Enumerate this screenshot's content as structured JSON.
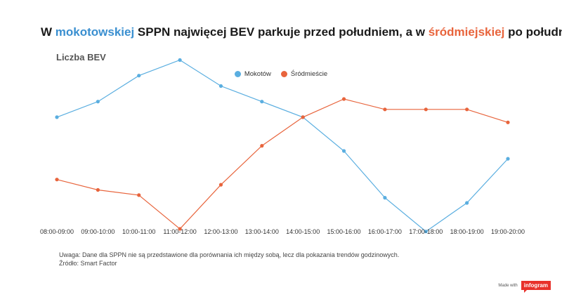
{
  "title": {
    "part1": "W ",
    "hl1": "mokotowskiej",
    "part2": " SPPN najwięcej BEV parkuje przed południem, a w ",
    "hl2": "śródmiejskiej",
    "part3": " po południu"
  },
  "colors": {
    "mokotow": "#5aaee0",
    "srodmiescie": "#e8643c"
  },
  "note": {
    "line1": "Uwaga: Dane dla SPPN nie są przedstawione dla porównania ich między sobą, lecz dla pokazania trendów godzinowych.",
    "line2": "Źródło: Smart Factor"
  },
  "brand": {
    "made_with": "Made with",
    "logo": "infogram"
  },
  "chart_data": {
    "type": "line",
    "title": "W mokotowskiej SPPN najwięcej BEV parkuje przed południem, a w śródmiejskiej po południu",
    "ylabel": "Liczba BEV",
    "xlabel": "",
    "categories": [
      "08:00-09:00",
      "09:00-10:00",
      "10:00-11:00",
      "11:00-12:00",
      "12:00-13:00",
      "13:00-14:00",
      "14:00-15:00",
      "15:00-16:00",
      "16:00-17:00",
      "17:00-18:00",
      "18:00-19:00",
      "19:00-20:00"
    ],
    "ylim": [
      0,
      100
    ],
    "grid": false,
    "legend_position": "top-center",
    "series": [
      {
        "name": "Mokotów",
        "values": [
          63,
          69,
          79,
          85,
          75,
          69,
          63,
          50,
          32,
          19,
          30,
          47
        ]
      },
      {
        "name": "Śródmieście",
        "values": [
          39,
          35,
          33,
          20,
          37,
          52,
          63,
          70,
          66,
          66,
          66,
          61
        ]
      }
    ]
  }
}
